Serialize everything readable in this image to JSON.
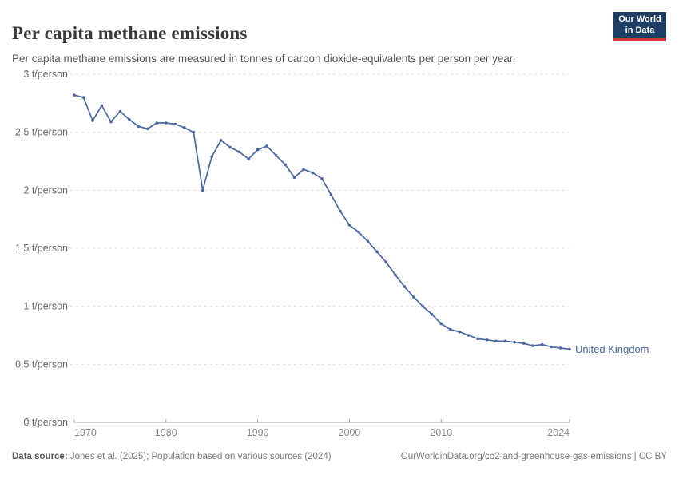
{
  "header": {
    "title": "Per capita methane emissions",
    "subtitle": "Per capita methane emissions are measured in tonnes of carbon dioxide-equivalents per person per year.",
    "logo": {
      "line1": "Our World",
      "line2": "in Data"
    }
  },
  "chart_data": {
    "type": "line",
    "title": "Per capita methane emissions",
    "unit": "t/person",
    "xlabel": "",
    "ylabel": "t/person",
    "xlim": [
      1970,
      2024
    ],
    "ylim": [
      0,
      3
    ],
    "grid": "horizontal-dashed",
    "legend_position": "end-of-line",
    "colors": {
      "line": "#4a67a3",
      "gridline": "#e2e2e2",
      "axis": "#a0a0a0",
      "ytick_text": "#676767",
      "xtick_text": "#8a8a8a"
    },
    "x": [
      1970,
      1971,
      1972,
      1973,
      1974,
      1975,
      1976,
      1977,
      1978,
      1979,
      1980,
      1981,
      1982,
      1983,
      1984,
      1985,
      1986,
      1987,
      1988,
      1989,
      1990,
      1991,
      1992,
      1993,
      1994,
      1995,
      1996,
      1997,
      1998,
      1999,
      2000,
      2001,
      2002,
      2003,
      2004,
      2005,
      2006,
      2007,
      2008,
      2009,
      2010,
      2011,
      2012,
      2013,
      2014,
      2015,
      2016,
      2017,
      2018,
      2019,
      2020,
      2021,
      2022,
      2023,
      2024
    ],
    "series": [
      {
        "name": "United Kingdom",
        "color": "#4a67a3",
        "values": [
          2.82,
          2.8,
          2.6,
          2.73,
          2.59,
          2.68,
          2.61,
          2.55,
          2.53,
          2.58,
          2.58,
          2.57,
          2.54,
          2.5,
          2.0,
          2.29,
          2.43,
          2.37,
          2.33,
          2.27,
          2.35,
          2.38,
          2.3,
          2.22,
          2.11,
          2.18,
          2.15,
          2.1,
          1.96,
          1.82,
          1.7,
          1.64,
          1.56,
          1.47,
          1.38,
          1.27,
          1.17,
          1.08,
          1.0,
          0.93,
          0.85,
          0.8,
          0.78,
          0.75,
          0.72,
          0.71,
          0.7,
          0.7,
          0.69,
          0.68,
          0.66,
          0.67,
          0.65,
          0.64,
          0.63
        ]
      }
    ],
    "yticks": [
      {
        "value": 0,
        "label": "0 t/person"
      },
      {
        "value": 0.5,
        "label": "0.5 t/person"
      },
      {
        "value": 1,
        "label": "1 t/person"
      },
      {
        "value": 1.5,
        "label": "1.5 t/person"
      },
      {
        "value": 2,
        "label": "2 t/person"
      },
      {
        "value": 2.5,
        "label": "2.5 t/person"
      },
      {
        "value": 3,
        "label": "3 t/person"
      }
    ],
    "xticks": [
      {
        "value": 1970,
        "label": "1970",
        "anchor": "start"
      },
      {
        "value": 1980,
        "label": "1980",
        "anchor": "middle"
      },
      {
        "value": 1990,
        "label": "1990",
        "anchor": "middle"
      },
      {
        "value": 2000,
        "label": "2000",
        "anchor": "middle"
      },
      {
        "value": 2010,
        "label": "2010",
        "anchor": "middle"
      },
      {
        "value": 2024,
        "label": "2024",
        "anchor": "end"
      }
    ]
  },
  "footer": {
    "datasource_label": "Data source:",
    "datasource_text": "Jones et al. (2025); Population based on various sources (2024)",
    "rights_text": "OurWorldinData.org/co2-and-greenhouse-gas-emissions | CC BY"
  }
}
